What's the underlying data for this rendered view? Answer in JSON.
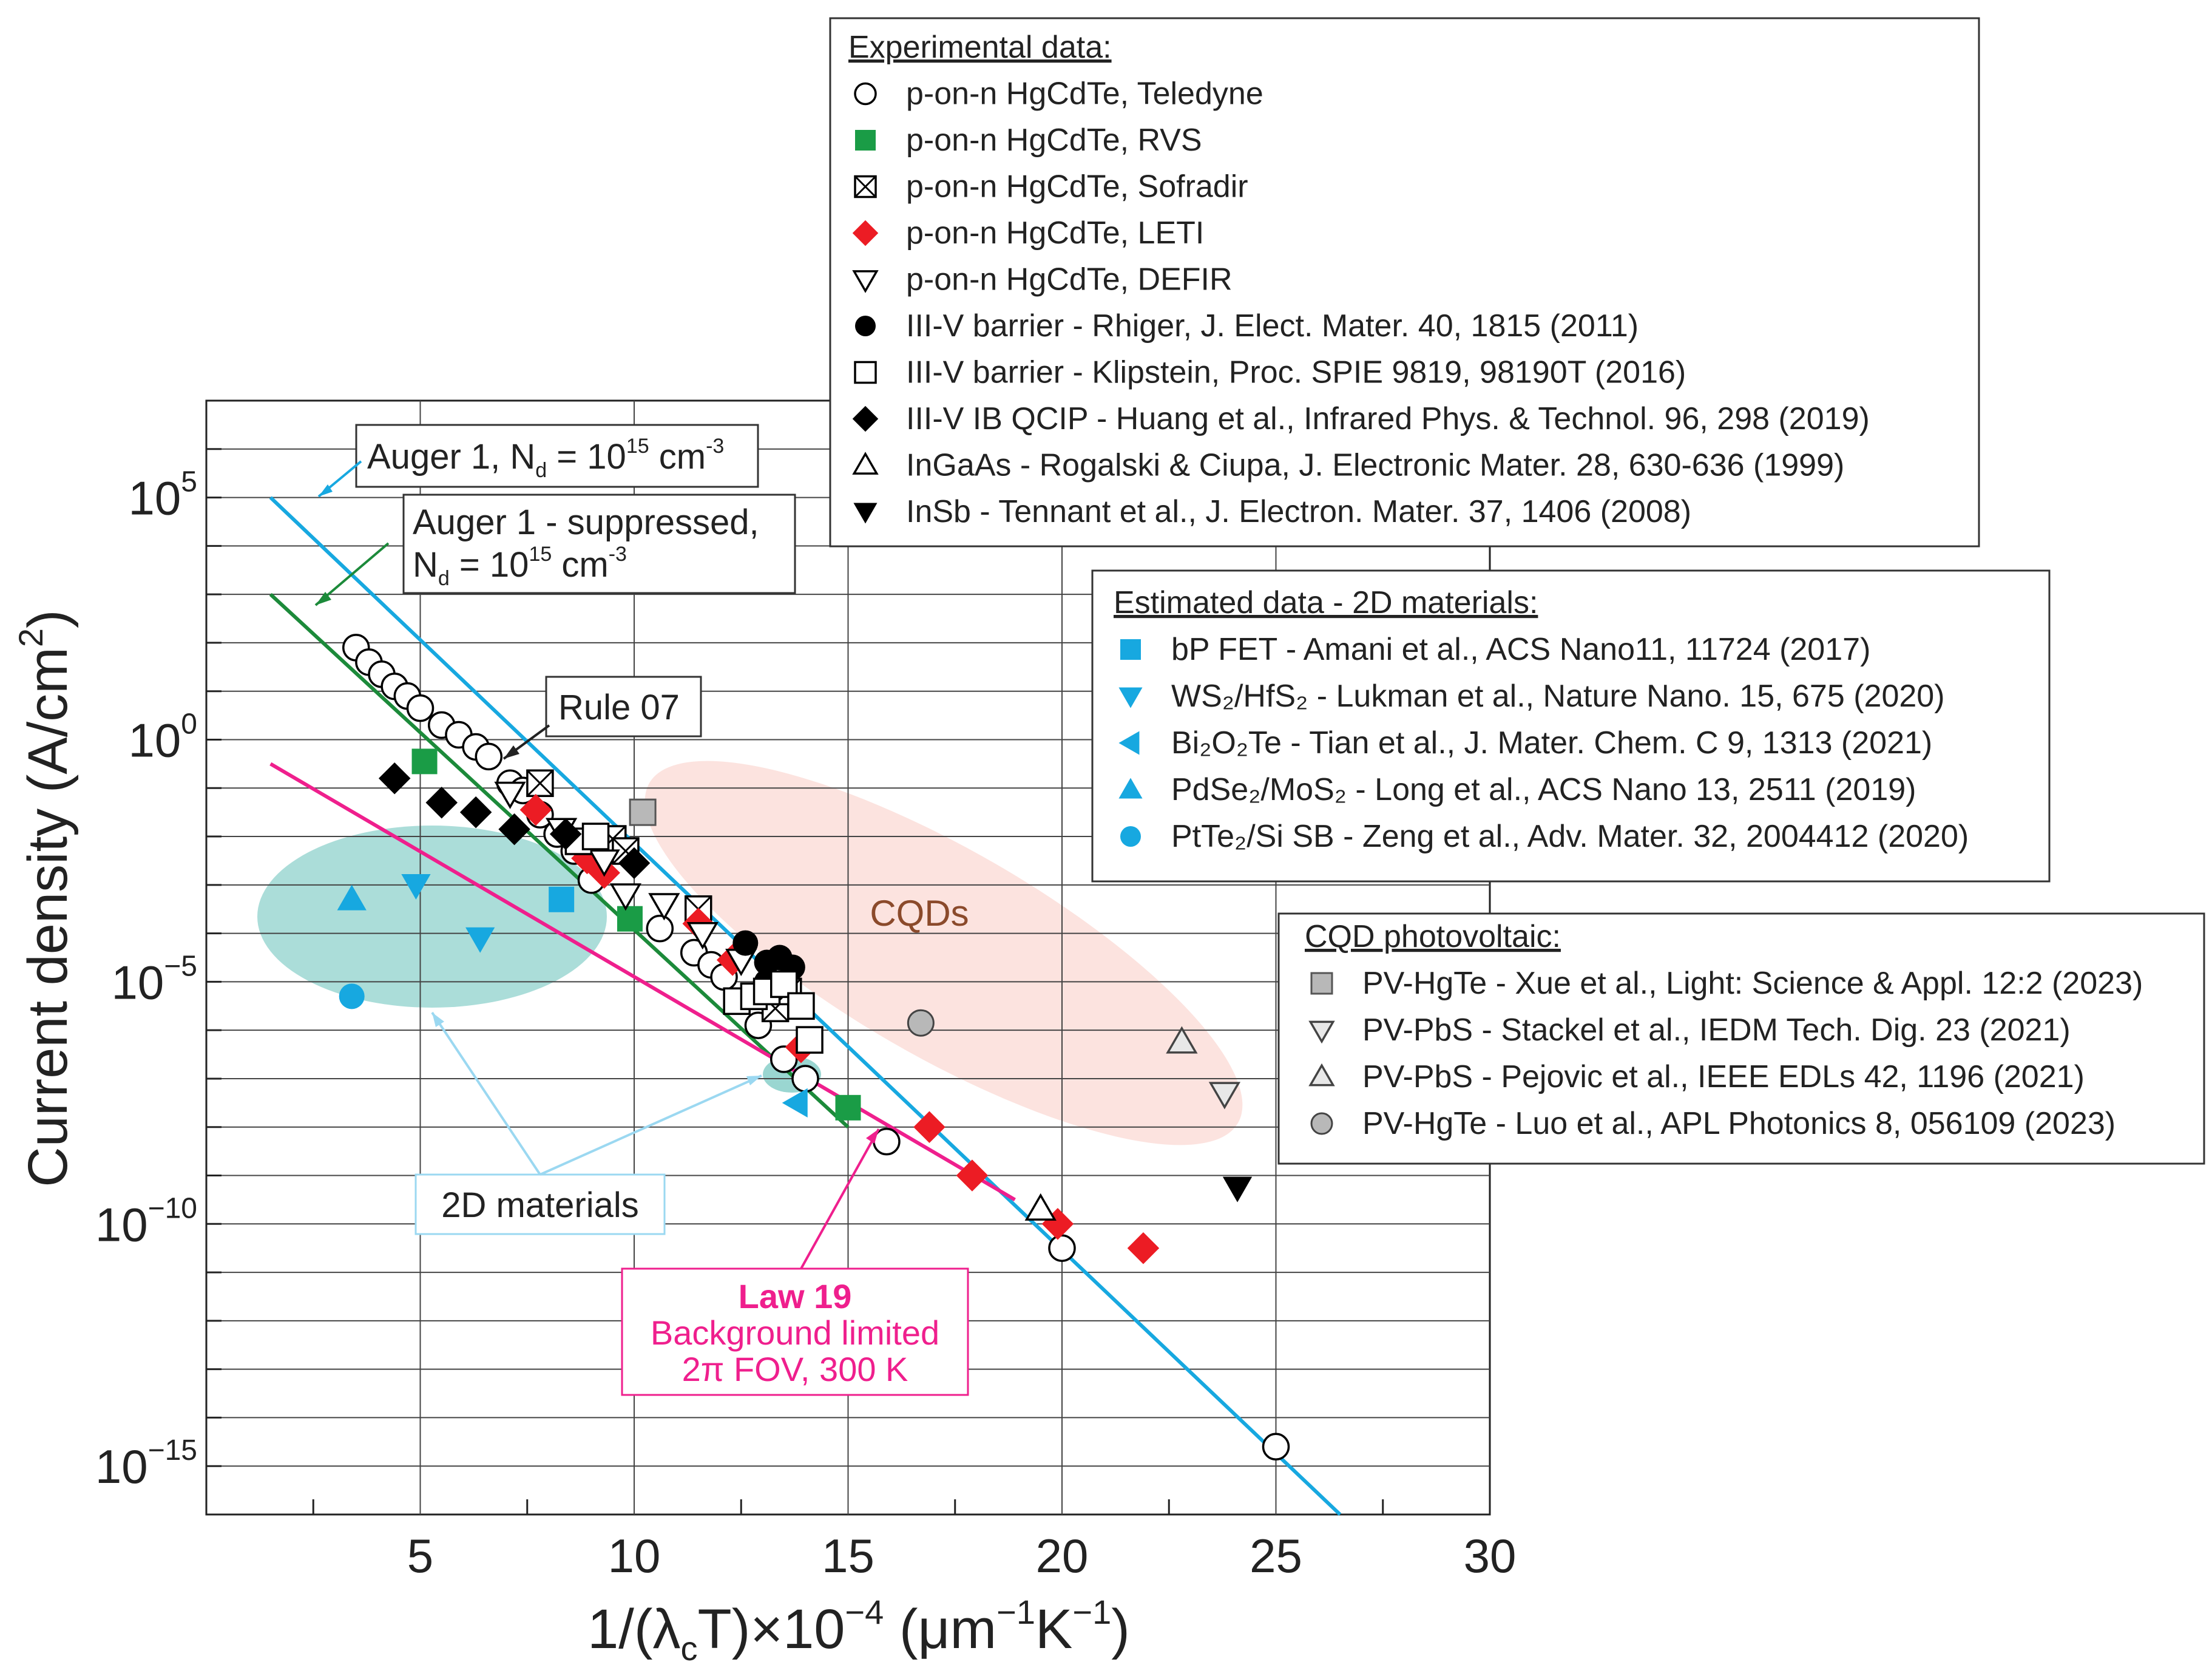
{
  "chart_data": {
    "type": "scatter",
    "title": "",
    "xlabel": "1/(λcT)×10⁻⁴ (μm⁻¹K⁻¹)",
    "xlabel_parts": {
      "pre": "1/(λ",
      "sub": "c",
      "mid": "T)×10",
      "sup": "−4",
      "post": " (μm",
      "sup2": "−1",
      "k": "K",
      "sup3": "−1",
      "end": ")"
    },
    "ylabel": "Current density (A/cm²)",
    "ylabel_parts": {
      "pre": "Current density (A/cm",
      "sup": "2",
      "post": ")"
    },
    "xlim": [
      0,
      30
    ],
    "ylim_log10": [
      -16,
      7
    ],
    "grid": true,
    "x_ticks": [
      {
        "value": 5,
        "label": "5"
      },
      {
        "value": 10,
        "label": "10"
      },
      {
        "value": 15,
        "label": "15"
      },
      {
        "value": 20,
        "label": "20"
      },
      {
        "value": 25,
        "label": "25"
      },
      {
        "value": 30,
        "label": "30"
      }
    ],
    "y_ticks": [
      {
        "exp": 5,
        "base": "10",
        "sup": "5"
      },
      {
        "exp": 0,
        "base": "10",
        "sup": "0"
      },
      {
        "exp": -5,
        "base": "10",
        "sup": "−5"
      },
      {
        "exp": -10,
        "base": "10",
        "sup": "−10"
      },
      {
        "exp": -15,
        "base": "10",
        "sup": "−15"
      }
    ],
    "lines": [
      {
        "name": "Auger 1, Nd = 10^15 cm^-3",
        "color": "#17a8e0",
        "x": [
          1.5,
          26.5
        ],
        "log10_y": [
          5.0,
          -16.0
        ]
      },
      {
        "name": "Auger 1 - suppressed, Nd = 10^15 cm^-3",
        "color": "#1c8a3a",
        "x": [
          1.5,
          15.0
        ],
        "log10_y": [
          3.0,
          -8.0
        ]
      },
      {
        "name": "Law 19 Background limited 2π FOV, 300 K",
        "color": "#ef1f8d",
        "x": [
          1.5,
          18.9
        ],
        "log10_y": [
          -0.5,
          -9.5
        ]
      }
    ],
    "series": [
      {
        "name": "p-on-n HgCdTe, Teledyne",
        "marker": "circle-open",
        "color": "#000000",
        "points": [
          [
            3.5,
            1.9
          ],
          [
            3.8,
            1.6
          ],
          [
            4.1,
            1.35
          ],
          [
            4.4,
            1.1
          ],
          [
            4.7,
            0.9
          ],
          [
            5.0,
            0.65
          ],
          [
            5.5,
            0.3
          ],
          [
            5.9,
            0.1
          ],
          [
            6.3,
            -0.15
          ],
          [
            6.6,
            -0.35
          ],
          [
            7.1,
            -0.9
          ],
          [
            7.4,
            -1.05
          ],
          [
            7.8,
            -1.55
          ],
          [
            8.2,
            -1.95
          ],
          [
            8.6,
            -2.3
          ],
          [
            9.0,
            -2.9
          ],
          [
            10.6,
            -3.9
          ],
          [
            11.4,
            -4.4
          ],
          [
            11.8,
            -4.65
          ],
          [
            12.1,
            -4.9
          ],
          [
            12.9,
            -5.9
          ],
          [
            13.5,
            -6.6
          ],
          [
            14.0,
            -7.0
          ],
          [
            15.9,
            -8.3
          ],
          [
            20.0,
            -10.5
          ],
          [
            25.0,
            -14.6
          ]
        ]
      },
      {
        "name": "p-on-n HgCdTe, RVS",
        "marker": "square-filled",
        "color": "#1a9c46",
        "points": [
          [
            5.1,
            -0.45
          ],
          [
            9.9,
            -3.7
          ],
          [
            15.0,
            -7.6
          ]
        ]
      },
      {
        "name": "p-on-n HgCdTe, Sofradir",
        "marker": "square-cross",
        "color": "#000000",
        "points": [
          [
            7.8,
            -0.9
          ],
          [
            9.5,
            -2.05
          ],
          [
            9.8,
            -2.3
          ],
          [
            11.5,
            -3.5
          ],
          [
            13.3,
            -5.55
          ],
          [
            13.6,
            -5.2
          ]
        ]
      },
      {
        "name": "p-on-n HgCdTe, LETI",
        "marker": "diamond-filled",
        "color": "#ec1c24",
        "points": [
          [
            7.7,
            -1.45
          ],
          [
            8.9,
            -2.45
          ],
          [
            9.3,
            -2.75
          ],
          [
            11.5,
            -3.8
          ],
          [
            12.3,
            -4.55
          ],
          [
            13.9,
            -6.35
          ],
          [
            16.9,
            -8.0
          ],
          [
            17.9,
            -9.0
          ],
          [
            19.9,
            -10.0
          ],
          [
            21.9,
            -10.5
          ]
        ]
      },
      {
        "name": "p-on-n HgCdTe, DEFIR",
        "marker": "triangle-down-open",
        "color": "#000000",
        "points": [
          [
            7.1,
            -1.1
          ],
          [
            8.3,
            -1.85
          ],
          [
            9.3,
            -2.5
          ],
          [
            9.8,
            -3.2
          ],
          [
            10.7,
            -3.4
          ],
          [
            11.6,
            -4.0
          ],
          [
            12.5,
            -4.55
          ]
        ]
      },
      {
        "name": "III-V barrier - Rhiger, J. Elect. Mater. 40, 1815 (2011)",
        "marker": "circle-filled",
        "color": "#000000",
        "points": [
          [
            12.6,
            -4.2
          ],
          [
            13.1,
            -4.6
          ],
          [
            13.4,
            -4.5
          ],
          [
            13.7,
            -4.7
          ],
          [
            13.1,
            -5.0
          ]
        ]
      },
      {
        "name": "III-V barrier - Klipstein, Proc. SPIE 9819, 98190T (2016)",
        "marker": "square-open",
        "color": "#000000",
        "points": [
          [
            8.7,
            -2.1
          ],
          [
            9.1,
            -2.0
          ],
          [
            12.4,
            -5.4
          ],
          [
            12.8,
            -5.3
          ],
          [
            13.1,
            -5.2
          ],
          [
            13.5,
            -5.05
          ],
          [
            13.9,
            -5.5
          ],
          [
            14.1,
            -6.2
          ]
        ]
      },
      {
        "name": "III-V IB QCIP - Huang et al., Infrared Phys. & Technol. 96, 298 (2019)",
        "marker": "diamond-filled",
        "color": "#000000",
        "points": [
          [
            4.4,
            -0.8
          ],
          [
            5.5,
            -1.3
          ],
          [
            6.3,
            -1.5
          ],
          [
            7.2,
            -1.85
          ],
          [
            8.4,
            -1.95
          ],
          [
            10.0,
            -2.55
          ]
        ]
      },
      {
        "name": "InGaAs - Rogalski & Ciupa, J. Electronic Mater. 28, 630-636 (1999)",
        "marker": "triangle-up-open",
        "color": "#000000",
        "points": [
          [
            19.5,
            -9.7
          ]
        ]
      },
      {
        "name": "InSb - Tennant et al., J. Electron. Mater. 37, 1406 (2008)",
        "marker": "triangle-down-filled",
        "color": "#000000",
        "points": [
          [
            24.1,
            -9.25
          ]
        ]
      },
      {
        "name": "bP FET - Amani et al., ACS Nano11, 11724 (2017)",
        "marker": "square-filled",
        "color": "#17a8e0",
        "points": [
          [
            8.3,
            -3.3
          ]
        ]
      },
      {
        "name": "WS₂/HfS₂ - Lukman et al., Nature Nano. 15, 675 (2020)",
        "marker": "triangle-down-filled",
        "color": "#17a8e0",
        "points": [
          [
            4.9,
            -3.0
          ],
          [
            6.4,
            -4.1
          ]
        ]
      },
      {
        "name": "Bi₂O₂Te - Tian et al., J. Mater. Chem. C 9, 1313 (2021)",
        "marker": "triangle-left-filled",
        "color": "#17a8e0",
        "points": [
          [
            13.8,
            -7.5
          ]
        ]
      },
      {
        "name": "PdSe₂/MoS₂ - Long et al., ACS Nano 13, 2511 (2019)",
        "marker": "triangle-up-filled",
        "color": "#17a8e0",
        "points": [
          [
            3.4,
            -3.3
          ]
        ]
      },
      {
        "name": "PtTe₂/Si SB - Zeng et al., Adv. Mater. 32, 2004412 (2020)",
        "marker": "circle-filled",
        "color": "#17a8e0",
        "points": [
          [
            3.4,
            -5.3
          ]
        ]
      },
      {
        "name": "PV-HgTe - Xue et al., Light: Science & Appl. 12:2 (2023)",
        "marker": "square-filled",
        "color": "#b8b8b8",
        "points": [
          [
            10.2,
            -1.5
          ]
        ]
      },
      {
        "name": "PV-PbS - Stackel et al., IEDM Tech. Dig. 23 (2021)",
        "marker": "triangle-down-open-gray",
        "color": "#b8b8b8",
        "points": [
          [
            23.8,
            -7.3
          ]
        ]
      },
      {
        "name": "PV-PbS - Pejovic et al., IEEE EDLs 42, 1196 (2021)",
        "marker": "triangle-up-open-gray",
        "color": "#b8b8b8",
        "points": [
          [
            22.8,
            -6.25
          ]
        ]
      },
      {
        "name": "PV-HgTe - Luo et al., APL Photonics 8, 056109 (2023)",
        "marker": "circle-gray",
        "color": "#b8b8b8",
        "points": [
          [
            16.7,
            -5.85
          ]
        ]
      }
    ],
    "regions": [
      {
        "name": "2D materials",
        "color": "#8fd1cc"
      },
      {
        "name": "CQDs",
        "color": "#fbd9d4"
      }
    ],
    "legend_groups": [
      {
        "title": "Experimental data:",
        "entries": [
          {
            "marker": "circle-open",
            "color": "#000000",
            "label": "p-on-n HgCdTe, Teledyne"
          },
          {
            "marker": "square-filled",
            "color": "#1a9c46",
            "label": "p-on-n HgCdTe, RVS"
          },
          {
            "marker": "square-cross",
            "color": "#000000",
            "label": "p-on-n HgCdTe, Sofradir"
          },
          {
            "marker": "diamond-filled",
            "color": "#ec1c24",
            "label": "p-on-n HgCdTe, LETI"
          },
          {
            "marker": "triangle-down-open",
            "color": "#000000",
            "label": "p-on-n HgCdTe, DEFIR"
          },
          {
            "marker": "circle-filled",
            "color": "#000000",
            "label": "III-V barrier - Rhiger, J. Elect. Mater. 40, 1815 (2011)"
          },
          {
            "marker": "square-open",
            "color": "#000000",
            "label": "III-V barrier - Klipstein, Proc. SPIE 9819, 98190T (2016)"
          },
          {
            "marker": "diamond-filled",
            "color": "#000000",
            "label": "III-V IB QCIP - Huang et al., Infrared Phys. & Technol. 96, 298 (2019)"
          },
          {
            "marker": "triangle-up-open",
            "color": "#000000",
            "label": "InGaAs - Rogalski & Ciupa, J. Electronic Mater. 28, 630-636 (1999)"
          },
          {
            "marker": "triangle-down-filled",
            "color": "#000000",
            "label": "InSb - Tennant et al., J. Electron. Mater. 37, 1406 (2008)"
          }
        ]
      },
      {
        "title": "Estimated data - 2D materials:",
        "entries": [
          {
            "marker": "square-filled",
            "color": "#17a8e0",
            "label": "bP FET - Amani et al., ACS Nano11, 11724 (2017)"
          },
          {
            "marker": "triangle-down-filled",
            "color": "#17a8e0",
            "label": "WS₂/HfS₂ - Lukman et al., Nature Nano. 15, 675 (2020)"
          },
          {
            "marker": "triangle-left-filled",
            "color": "#17a8e0",
            "label": "Bi₂O₂Te - Tian et al., J. Mater. Chem. C 9, 1313 (2021)"
          },
          {
            "marker": "triangle-up-filled",
            "color": "#17a8e0",
            "label": "PdSe₂/MoS₂ - Long et al., ACS Nano 13, 2511 (2019)"
          },
          {
            "marker": "circle-filled",
            "color": "#17a8e0",
            "label": "PtTe₂/Si SB - Zeng et al., Adv. Mater. 32, 2004412 (2020)"
          }
        ]
      },
      {
        "title": "CQD photovoltaic:",
        "entries": [
          {
            "marker": "square-filled",
            "color": "#b8b8b8",
            "label": "PV-HgTe - Xue et al., Light: Science & Appl. 12:2 (2023)"
          },
          {
            "marker": "triangle-down-open-gray",
            "color": "#b8b8b8",
            "label": "PV-PbS - Stackel et al., IEDM Tech. Dig. 23 (2021)"
          },
          {
            "marker": "triangle-up-open-gray",
            "color": "#b8b8b8",
            "label": "PV-PbS - Pejovic et al., IEEE EDLs 42, 1196 (2021)"
          },
          {
            "marker": "circle-gray",
            "color": "#b8b8b8",
            "label": "PV-HgTe - Luo et al., APL Photonics 8, 056109 (2023)"
          }
        ]
      }
    ],
    "annotations": {
      "auger1": {
        "pre": "Auger 1, N",
        "sub": "d",
        "mid": " = 10",
        "sup": "15",
        "post": " cm",
        "sup2": "-3"
      },
      "auger_supp_line1": "Auger 1 - suppressed,",
      "auger_supp_line2": {
        "pre": "N",
        "sub": "d",
        "mid": " = 10",
        "sup": "15",
        "post": " cm",
        "sup2": "-3"
      },
      "rule07": "Rule 07",
      "law19_title": "Law 19",
      "law19_line2": "Background limited",
      "law19_line3": "2π FOV, 300 K",
      "cqds": "CQDs",
      "twod": "2D materials"
    }
  }
}
